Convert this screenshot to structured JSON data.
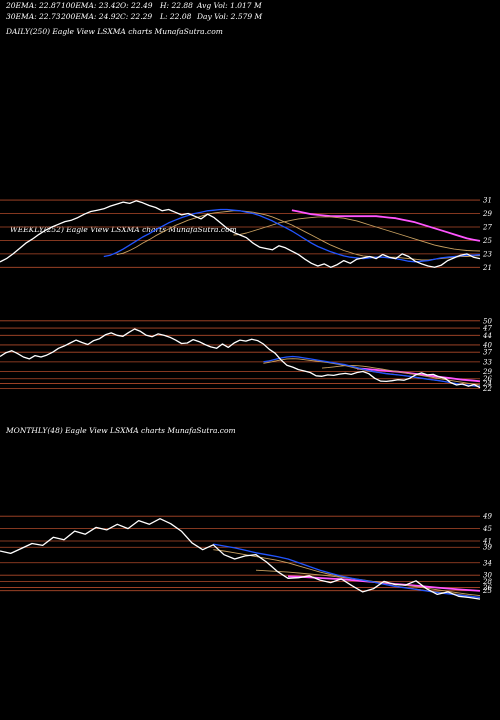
{
  "header": {
    "ema20": "20EMA: 22.87",
    "ema100": "100EMA: 23.42",
    "open": "O: 22.49",
    "high": "H: 22.88",
    "avg_vol": "Avg Vol: 1.017 M",
    "ema30": "30EMA: 22.73",
    "ema200": "200EMA: 24.92",
    "close": "C: 22.29",
    "low": "L: 22.08",
    "day_vol": "Day Vol: 2.579 M"
  },
  "panels": {
    "daily_label": "DAILY(250) Eagle   View  LSXMA charts MunafaSutra.com",
    "weekly_label": "WEEKLY(252) Eagle   View  LSXMA charts MunafaSutra.com",
    "monthly_label": "MONTHLY(48) Eagle   View  LSXMA charts MunafaSutra.com"
  },
  "colors": {
    "background": "#000000",
    "price": "#ffffff",
    "ema_fast": "#2255ff",
    "ema_long": "#ff55ff",
    "ema_mid": "#c8a060",
    "level_line": "#b04a2a",
    "tick_text": "#ffffff"
  },
  "chart_data": [
    {
      "type": "line",
      "title": "DAILY(250) Eagle   View  LSXMA charts MunafaSutra.com",
      "yticks": [
        31,
        29,
        27,
        25,
        23,
        21
      ],
      "ylim": [
        20.3,
        32.5
      ],
      "grid": true,
      "series": [
        {
          "values": [
            21.8,
            22.3,
            23.0,
            23.8,
            24.6,
            25.2,
            25.9,
            26.5,
            27.0,
            27.4,
            27.8,
            28.0,
            28.4,
            28.9,
            29.3,
            29.5,
            29.7,
            30.1,
            30.4,
            30.7,
            30.5,
            30.9,
            30.6,
            30.2,
            29.9,
            29.4,
            29.6,
            29.2,
            28.8,
            29.0,
            28.6,
            28.2,
            28.9,
            28.4,
            27.6,
            26.8,
            26.2,
            25.8,
            25.4,
            24.6,
            24.0,
            23.8,
            23.6,
            24.2,
            23.9,
            23.4,
            22.9,
            22.2,
            21.6,
            21.2,
            21.5,
            21.0,
            21.4,
            22.0,
            21.6,
            22.2,
            22.4,
            22.6,
            22.3,
            22.9,
            22.5,
            22.3,
            23.0,
            22.6,
            21.9,
            21.5,
            21.2,
            21.0,
            21.3,
            22.0,
            22.4,
            22.8,
            23.0,
            22.5,
            22.29
          ]
        },
        {
          "values": [
            22.6,
            22.8,
            23.2,
            23.7,
            24.3,
            24.9,
            25.5,
            26.0,
            26.6,
            27.1,
            27.6,
            28.0,
            28.4,
            28.7,
            29.0,
            29.2,
            29.4,
            29.5,
            29.6,
            29.6,
            29.5,
            29.4,
            29.2,
            29.0,
            28.7,
            28.3,
            27.9,
            27.4,
            26.9,
            26.4,
            25.8,
            25.2,
            24.6,
            24.1,
            23.7,
            23.3,
            23.0,
            22.7,
            22.5,
            22.4,
            22.3,
            22.4,
            22.5,
            22.5,
            22.4,
            22.3,
            22.1,
            21.9,
            21.8,
            21.9,
            22.0,
            22.2,
            22.4,
            22.5,
            22.6,
            22.7,
            22.8,
            22.8,
            22.87
          ]
        },
        {
          "values": [
            22.9,
            23.1,
            23.5,
            24.0,
            24.6,
            25.1,
            25.7,
            26.2,
            26.7,
            27.2,
            27.6,
            28.0,
            28.3,
            28.6,
            28.9,
            29.1,
            29.2,
            29.3,
            29.4,
            29.4,
            29.3,
            29.2,
            29.0,
            28.8,
            28.5,
            28.1,
            27.7,
            27.3,
            26.8,
            26.3,
            25.8,
            25.3,
            24.8,
            24.3,
            23.9,
            23.5,
            23.2,
            22.9,
            22.7,
            22.6,
            22.5,
            22.5,
            22.5,
            22.5,
            22.4,
            22.3,
            22.2,
            22.1,
            22.1,
            22.2,
            22.3,
            22.4,
            22.5,
            22.6,
            22.6,
            22.7,
            22.73
          ]
        },
        {
          "values": [
            25.8,
            25.9,
            26.1,
            26.4,
            26.7,
            27.0,
            27.3,
            27.6,
            27.8,
            28.0,
            28.2,
            28.3,
            28.4,
            28.5,
            28.5,
            28.5,
            28.4,
            28.3,
            28.1,
            27.9,
            27.6,
            27.3,
            27.0,
            26.7,
            26.4,
            26.1,
            25.8,
            25.5,
            25.2,
            24.9,
            24.6,
            24.3,
            24.1,
            23.9,
            23.7,
            23.6,
            23.5,
            23.45,
            23.42
          ]
        },
        {
          "values": [
            29.5,
            29.3,
            29.1,
            28.9,
            28.8,
            28.7,
            28.6,
            28.6,
            28.6,
            28.6,
            28.6,
            28.6,
            28.6,
            28.6,
            28.5,
            28.4,
            28.3,
            28.1,
            27.9,
            27.7,
            27.4,
            27.1,
            26.8,
            26.5,
            26.2,
            25.9,
            25.6,
            25.3,
            25.1,
            24.92
          ]
        }
      ]
    },
    {
      "type": "line",
      "title": "WEEKLY(252) Eagle   View  LSXMA charts MunafaSutra.com",
      "yticks": [
        50,
        47,
        44,
        40,
        37,
        33,
        29,
        26,
        24,
        22
      ],
      "ylim": [
        20.5,
        52
      ],
      "grid": true,
      "series": [
        {
          "values": [
            35.2,
            36.8,
            37.6,
            36.4,
            35.0,
            34.2,
            35.6,
            35.0,
            35.8,
            37.0,
            38.6,
            39.6,
            40.8,
            42.0,
            41.0,
            40.2,
            41.8,
            42.6,
            44.2,
            45.0,
            44.0,
            43.6,
            45.2,
            46.6,
            45.6,
            44.0,
            43.4,
            44.6,
            44.0,
            43.2,
            42.0,
            40.6,
            40.8,
            42.2,
            41.4,
            40.2,
            39.2,
            38.6,
            40.4,
            39.0,
            40.8,
            42.0,
            41.6,
            42.4,
            41.8,
            40.4,
            38.2,
            36.6,
            33.8,
            31.6,
            30.8,
            29.8,
            29.2,
            28.6,
            27.2,
            27.0,
            27.6,
            27.4,
            27.9,
            28.2,
            27.8,
            28.6,
            29.0,
            28.1,
            26.2,
            25.0,
            24.9,
            25.2,
            25.6,
            25.4,
            26.2,
            27.6,
            28.4,
            27.6,
            27.8,
            26.8,
            26.2,
            24.4,
            23.4,
            23.8,
            22.9,
            23.6,
            22.29
          ]
        },
        {
          "values": [
            33.0,
            33.4,
            34.0,
            34.6,
            35.0,
            35.2,
            35.0,
            34.6,
            34.2,
            33.8,
            33.4,
            33.0,
            32.6,
            32.2,
            31.8,
            31.2,
            30.6,
            30.0,
            29.4,
            28.9,
            28.5,
            28.1,
            27.8,
            27.6,
            27.3,
            27.0,
            26.6,
            26.2,
            25.8,
            25.5,
            25.2,
            24.8,
            24.4,
            24.0,
            23.6,
            23.3,
            23.0,
            22.87
          ]
        },
        {
          "values": [
            32.4,
            32.8,
            33.3,
            33.8,
            34.2,
            34.3,
            34.2,
            33.9,
            33.6,
            33.3,
            33.0,
            32.7,
            32.3,
            31.9,
            31.4,
            30.8,
            30.2,
            29.7,
            29.2,
            28.8,
            28.5,
            28.2,
            27.9,
            27.6,
            27.3,
            27.0,
            26.6,
            26.2,
            25.9,
            25.5,
            25.2,
            24.8,
            24.4,
            24.0,
            23.6,
            23.3,
            23.0,
            22.73
          ]
        },
        {
          "values": [
            30.4,
            30.6,
            30.9,
            31.2,
            31.4,
            31.5,
            31.4,
            31.2,
            30.9,
            30.5,
            30.1,
            29.7,
            29.3,
            28.9,
            28.5,
            28.1,
            27.7,
            27.3,
            26.9,
            26.5,
            26.1,
            25.7,
            25.3,
            24.9,
            24.5,
            24.1,
            23.7,
            23.42
          ]
        },
        {
          "values": [
            30.2,
            30.1,
            29.9,
            29.7,
            29.5,
            29.3,
            29.1,
            28.9,
            28.6,
            28.3,
            28.0,
            27.7,
            27.4,
            27.1,
            26.8,
            26.5,
            26.2,
            25.9,
            25.6,
            25.4,
            25.2,
            24.92
          ]
        }
      ]
    },
    {
      "type": "line",
      "title": "MONTHLY(48) Eagle   View  LSXMA charts MunafaSutra.com",
      "yticks": [
        49,
        45,
        41,
        39,
        34,
        30,
        28,
        26,
        25
      ],
      "ylim": [
        22,
        51
      ],
      "grid": true,
      "series": [
        {
          "values": [
            37.8,
            37.0,
            38.6,
            40.2,
            39.6,
            42.2,
            41.4,
            44.2,
            43.2,
            45.4,
            44.6,
            46.4,
            45.0,
            47.6,
            46.4,
            48.2,
            46.6,
            44.2,
            40.4,
            38.2,
            39.8,
            36.6,
            35.2,
            36.2,
            36.6,
            34.2,
            31.2,
            29.0,
            29.2,
            29.8,
            28.4,
            27.6,
            28.8,
            26.6,
            24.6,
            25.6,
            28.0,
            27.0,
            26.8,
            28.2,
            25.6,
            23.8,
            24.6,
            23.2,
            22.8,
            22.29
          ]
        },
        {
          "values": [
            40.0,
            39.4,
            38.8,
            38.0,
            37.2,
            36.6,
            36.0,
            35.2,
            34.0,
            32.8,
            31.6,
            30.6,
            29.7,
            29.0,
            28.4,
            27.8,
            27.1,
            26.4,
            25.9,
            25.4,
            24.9,
            24.4,
            24.0,
            23.6,
            23.2,
            22.87
          ]
        },
        {
          "values": [
            38.2,
            37.8,
            37.2,
            36.6,
            36.0,
            35.4,
            34.8,
            34.0,
            33.0,
            32.0,
            31.0,
            30.2,
            29.5,
            28.9,
            28.3,
            27.7,
            27.1,
            26.5,
            26.0,
            25.5,
            25.0,
            24.6,
            24.2,
            23.8,
            23.3,
            22.73
          ]
        },
        {
          "values": [
            31.6,
            31.4,
            31.2,
            31.0,
            30.7,
            30.4,
            30.1,
            29.7,
            29.3,
            28.9,
            28.5,
            28.0,
            27.6,
            27.2,
            26.7,
            26.3,
            25.8,
            25.3,
            24.8,
            24.3,
            23.8,
            23.42
          ]
        },
        {
          "values": [
            29.6,
            29.5,
            29.3,
            29.1,
            28.9,
            28.7,
            28.4,
            28.1,
            27.8,
            27.5,
            27.2,
            26.9,
            26.6,
            26.3,
            26.0,
            25.7,
            25.4,
            25.2,
            24.92
          ]
        }
      ]
    }
  ]
}
